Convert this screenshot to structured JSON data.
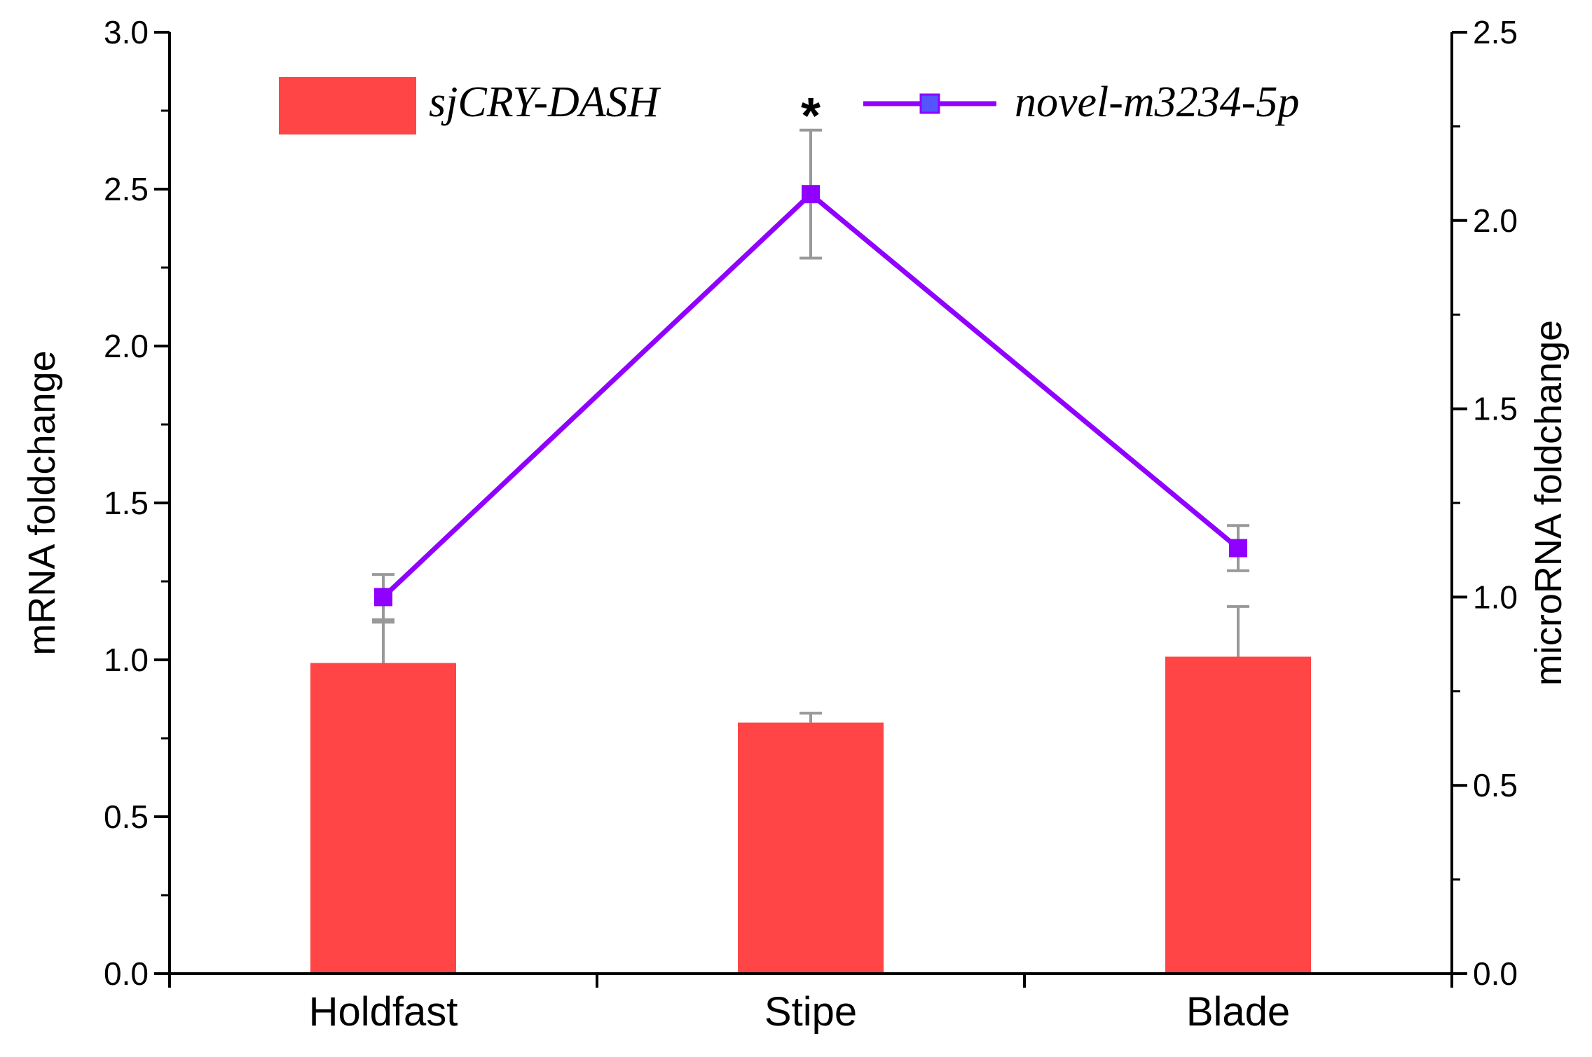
{
  "chart_data": {
    "type": "bar",
    "categories": [
      "Holdfast",
      "Stipe",
      "Blade"
    ],
    "series": [
      {
        "name": "sjCRY-DASH",
        "type": "bar",
        "axis": "left",
        "values": [
          0.99,
          0.8,
          1.01
        ],
        "errors": [
          0.13,
          0.03,
          0.16
        ],
        "color": "#ff4545"
      },
      {
        "name": "novel-m3234-5p",
        "type": "line",
        "axis": "right",
        "values": [
          1.0,
          2.07,
          1.13
        ],
        "errors": [
          0.06,
          0.17,
          0.06
        ],
        "color": "#8f00ff",
        "marker": "square"
      }
    ],
    "ylabel": "mRNA foldchange",
    "ylabel_right": "microRNA foldchange",
    "ylim": [
      0,
      3.0
    ],
    "ylim_right": [
      0,
      2.5
    ],
    "yticks": [
      "0.0",
      "0.5",
      "1.0",
      "1.5",
      "2.0",
      "2.5",
      "3.0"
    ],
    "yticks_right": [
      "0.0",
      "0.5",
      "1.0",
      "1.5",
      "2.0",
      "2.5"
    ],
    "annotations": [
      {
        "text": "*",
        "category": "Stipe"
      }
    ],
    "legend_position": "top",
    "error_bar_color": "#999999",
    "grid": false
  }
}
